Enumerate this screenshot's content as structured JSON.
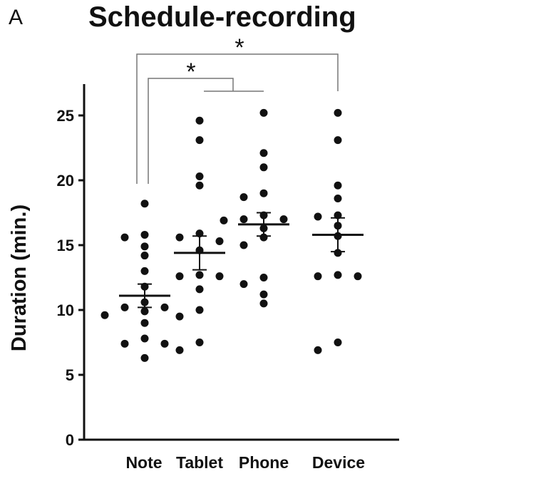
{
  "panel_label": "A",
  "chart_data": {
    "type": "scatter",
    "title": "Schedule-recording",
    "xlabel": "",
    "ylabel": "Duration (min.)",
    "ylim": [
      0,
      27
    ],
    "yticks": [
      0,
      5,
      10,
      15,
      20,
      25
    ],
    "categories": [
      "Note",
      "Tablet",
      "Phone",
      "Device"
    ],
    "series": [
      {
        "category": "Note",
        "mean": 11.1,
        "sem": 0.9,
        "values": [
          18.2,
          15.8,
          15.6,
          14.9,
          14.2,
          13.0,
          11.8,
          10.6,
          10.2,
          10.2,
          9.9,
          9.6,
          9.0,
          7.8,
          7.4,
          7.4,
          6.3
        ]
      },
      {
        "category": "Tablet",
        "mean": 14.4,
        "sem": 1.3,
        "values": [
          24.6,
          23.1,
          20.3,
          19.6,
          15.9,
          15.6,
          15.3,
          14.6,
          12.7,
          12.6,
          12.6,
          11.6,
          10.0,
          9.5,
          7.5,
          6.9
        ]
      },
      {
        "category": "Phone",
        "mean": 16.6,
        "sem": 0.9,
        "values": [
          25.2,
          22.1,
          21.0,
          19.0,
          18.7,
          17.3,
          17.0,
          17.0,
          16.9,
          16.3,
          15.6,
          15.0,
          12.5,
          12.0,
          11.2,
          10.5
        ]
      },
      {
        "category": "Device",
        "mean": 15.8,
        "sem": 1.3,
        "values": [
          25.2,
          23.1,
          19.6,
          18.6,
          17.3,
          17.2,
          16.5,
          15.7,
          14.4,
          12.7,
          12.6,
          12.6,
          7.5,
          6.9
        ]
      }
    ],
    "significance": [
      {
        "from": "Note",
        "to": [
          "Tablet",
          "Phone"
        ],
        "label": "*"
      },
      {
        "from": "Note",
        "to": [
          "Device"
        ],
        "label": "*"
      }
    ]
  }
}
